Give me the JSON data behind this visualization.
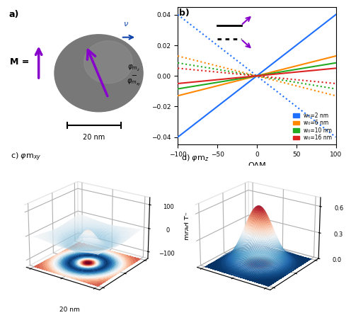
{
  "panel_b": {
    "oam_range": [
      -100,
      100
    ],
    "ylim": [
      -0.045,
      0.045
    ],
    "yticks": [
      -0.04,
      -0.02,
      0.0,
      0.02,
      0.04
    ],
    "xticks": [
      -100,
      -50,
      0,
      50,
      100
    ],
    "xlabel": "OAM",
    "line_params": [
      {
        "slope_solid": 0.0004,
        "slope_dotted": -0.0004,
        "color": "#1f6fff"
      },
      {
        "slope_solid": 0.00013,
        "slope_dotted": -0.00013,
        "color": "#ff8800"
      },
      {
        "slope_solid": 8.5e-05,
        "slope_dotted": -8.5e-05,
        "color": "#22aa22"
      },
      {
        "slope_solid": 5e-05,
        "slope_dotted": -5e-05,
        "color": "#dd2222"
      }
    ],
    "legend_labels": [
      "w₀=2 nm",
      "w₀=6 nm",
      "w₀=10 nm",
      "w₀=16 nm"
    ],
    "legend_colors": [
      "#1f6fff",
      "#ff8800",
      "#22aa22",
      "#dd2222"
    ],
    "arrow_color": "#8800cc"
  },
  "panel_c": {
    "zlim": [
      -130,
      130
    ],
    "zticks": [
      -100,
      0,
      100
    ],
    "zlabel": "mrad T⁻",
    "scalebar": "20 nm",
    "sigma_peak": 0.25,
    "sigma_cup": 0.5,
    "amp_peak": 120,
    "amp_cup": -110,
    "elev": 22,
    "azim": -55
  },
  "panel_d": {
    "zlim": [
      0,
      0.7
    ],
    "zticks": [
      0.0,
      0.3,
      0.6
    ],
    "sigma": 0.38,
    "amp": 0.65,
    "elev": 22,
    "azim": -55
  },
  "panel_a": {
    "sphere_color": "#787878",
    "highlight_color": "#999999",
    "arrow_color": "#8800cc",
    "vel_arrow_color": "#1144aa",
    "scale_bar": "20 nm"
  }
}
